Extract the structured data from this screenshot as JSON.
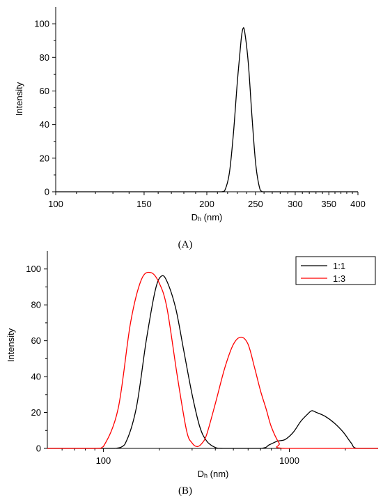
{
  "figure": {
    "panel_a_label": "(A)",
    "panel_b_label": "(B)"
  },
  "chart_data": [
    {
      "type": "line",
      "xlabel": "Dh (nm)",
      "ylabel": "Intensity",
      "xscale": "log",
      "xlim": [
        100,
        400
      ],
      "ylim": [
        0,
        110
      ],
      "x_ticks": [
        100,
        150,
        200,
        250,
        300,
        350,
        400
      ],
      "y_ticks": [
        0,
        20,
        40,
        60,
        80,
        100
      ],
      "grid": false,
      "series": [
        {
          "color": "#000000",
          "x": [
            100,
            200,
            214,
            218,
            222,
            226,
            230,
            234,
            236,
            238,
            242,
            246,
            250,
            254,
            258,
            270,
            400
          ],
          "y": [
            0,
            0,
            0,
            2,
            12,
            35,
            65,
            90,
            97,
            95,
            76,
            45,
            18,
            4,
            0,
            0,
            0
          ]
        }
      ]
    },
    {
      "type": "line",
      "xlabel": "Dh (nm)",
      "ylabel": "Intensity",
      "xscale": "log",
      "xlim": [
        50,
        3000
      ],
      "ylim": [
        0,
        110
      ],
      "x_ticks": [
        100,
        1000
      ],
      "y_ticks": [
        0,
        20,
        40,
        60,
        80,
        100
      ],
      "grid": false,
      "legend": "top-right",
      "series": [
        {
          "name": "1:1",
          "color": "#000000",
          "x": [
            50,
            90,
            100,
            115,
            130,
            150,
            170,
            190,
            205,
            220,
            245,
            270,
            300,
            330,
            360,
            400,
            440,
            700,
            780,
            860,
            950,
            1050,
            1150,
            1250,
            1320,
            1400,
            1550,
            1750,
            1950,
            2150,
            2300,
            3000
          ],
          "y": [
            0,
            0,
            0,
            0,
            2,
            22,
            60,
            88,
            96,
            93,
            78,
            55,
            30,
            12,
            4,
            0.5,
            0,
            0,
            2,
            4,
            5,
            9,
            15,
            19,
            21,
            20,
            18,
            14,
            9,
            3,
            0,
            0
          ]
        },
        {
          "name": "1:3",
          "color": "#ff0000",
          "x": [
            50,
            90,
            100,
            120,
            140,
            160,
            180,
            200,
            220,
            250,
            280,
            300,
            320,
            340,
            360,
            400,
            450,
            500,
            550,
            600,
            650,
            700,
            750,
            800,
            880,
            950,
            3000
          ],
          "y": [
            0,
            0,
            1,
            22,
            70,
            94,
            98,
            92,
            78,
            40,
            10,
            3,
            1,
            3,
            8,
            25,
            45,
            58,
            62,
            58,
            45,
            32,
            22,
            12,
            3,
            0,
            0
          ]
        }
      ]
    }
  ]
}
